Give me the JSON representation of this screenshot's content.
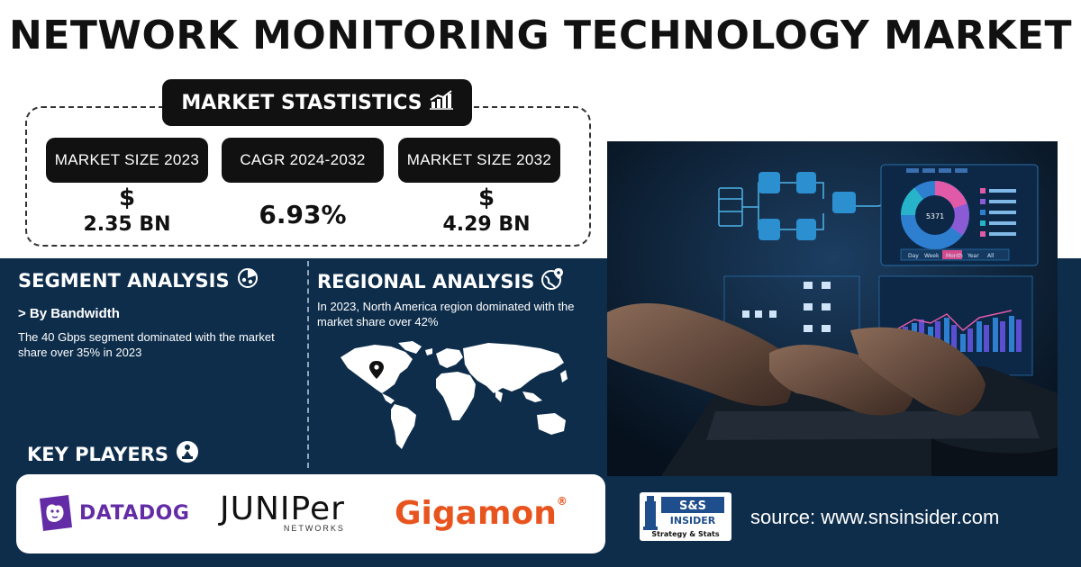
{
  "title": "NETWORK MONITORING TECHNOLOGY MARKET",
  "stats": {
    "header": "MARKET STASTISTICS",
    "header_icon": "chart-growth-icon",
    "items": [
      {
        "label": "MARKET SIZE 2023",
        "symbol": "$",
        "value": "2.35 BN"
      },
      {
        "label": "CAGR 2024-2032",
        "symbol": "",
        "value": "6.93%"
      },
      {
        "label": "MARKET SIZE 2032",
        "symbol": "$",
        "value": "4.29 BN"
      }
    ]
  },
  "segment": {
    "title": "SEGMENT ANALYSIS",
    "icon": "segment-pie-icon",
    "subtitle": "> By Bandwidth",
    "text": "The 40 Gbps segment dominated with the market share over 35% in 2023"
  },
  "regional": {
    "title": "REGIONAL ANALYSIS",
    "icon": "globe-pin-icon",
    "text": "In 2023, North America region dominated with the market share over 42%"
  },
  "key_players": {
    "title": "KEY PLAYERS",
    "icon": "player-icon",
    "logos": [
      {
        "name": "DATADOG"
      },
      {
        "name": "JUNIPer",
        "sub": "NETWORKS"
      },
      {
        "name": "Gigamon",
        "mark": "®"
      }
    ]
  },
  "brand": {
    "line1": "S&S",
    "line2": "INSIDER",
    "tagline": "Strategy & Stats"
  },
  "source": "source: www.snsinsider.com",
  "dashboard": {
    "center_value": "5371",
    "tabs": [
      "Day",
      "Week",
      "Month",
      "Year",
      "All"
    ]
  },
  "colors": {
    "navy": "#0d2d4b",
    "accent_orange": "#e8541e",
    "datadog_purple": "#632ca6"
  }
}
